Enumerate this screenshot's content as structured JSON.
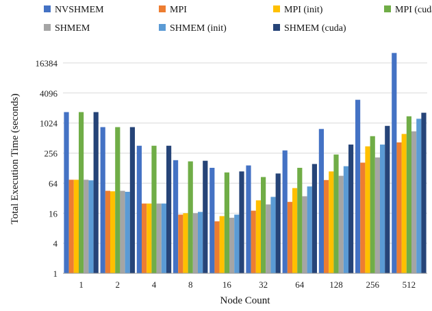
{
  "chart_data": {
    "type": "bar",
    "title": "",
    "xlabel": "Node Count",
    "ylabel": "Total Execution Time (seconds)",
    "yscale": "log2",
    "ylim": [
      1,
      32768
    ],
    "yticks": [
      1,
      4,
      16,
      64,
      256,
      1024,
      4096,
      16384
    ],
    "ytick_labels": [
      "1",
      "4",
      "16",
      "64",
      "256",
      "1024",
      "4096",
      "16384"
    ],
    "grid": "horizontal",
    "legend_position": "top",
    "categories": [
      "1",
      "2",
      "4",
      "8",
      "16",
      "32",
      "64",
      "128",
      "256",
      "512"
    ],
    "series": [
      {
        "name": "NVSHMEM",
        "color": "#4472C4",
        "values": [
          1700,
          850,
          360,
          185,
          130,
          145,
          290,
          780,
          3000,
          26000
        ]
      },
      {
        "name": "MPI",
        "color": "#ED7D31",
        "values": [
          75,
          45,
          25,
          15,
          11,
          18,
          27,
          74,
          165,
          420
        ]
      },
      {
        "name": "MPI (init)",
        "color": "#FFC000",
        "values": [
          75,
          44,
          25,
          16,
          14,
          29,
          51,
          110,
          350,
          620
        ]
      },
      {
        "name": "MPI (cuda)",
        "color": "#70AD47",
        "values": [
          1700,
          850,
          360,
          175,
          105,
          85,
          130,
          240,
          560,
          1400
        ]
      },
      {
        "name": "SHMEM",
        "color": "#A5A5A5",
        "values": [
          75,
          45,
          25,
          16,
          13,
          24,
          35,
          90,
          210,
          700
        ]
      },
      {
        "name": "SHMEM (init)",
        "color": "#5B9BD5",
        "values": [
          73,
          43,
          25,
          17,
          15,
          34,
          55,
          140,
          380,
          1250
        ]
      },
      {
        "name": "SHMEM (cuda)",
        "color": "#264478",
        "values": [
          1700,
          850,
          360,
          180,
          110,
          100,
          155,
          380,
          900,
          1650
        ]
      }
    ]
  }
}
